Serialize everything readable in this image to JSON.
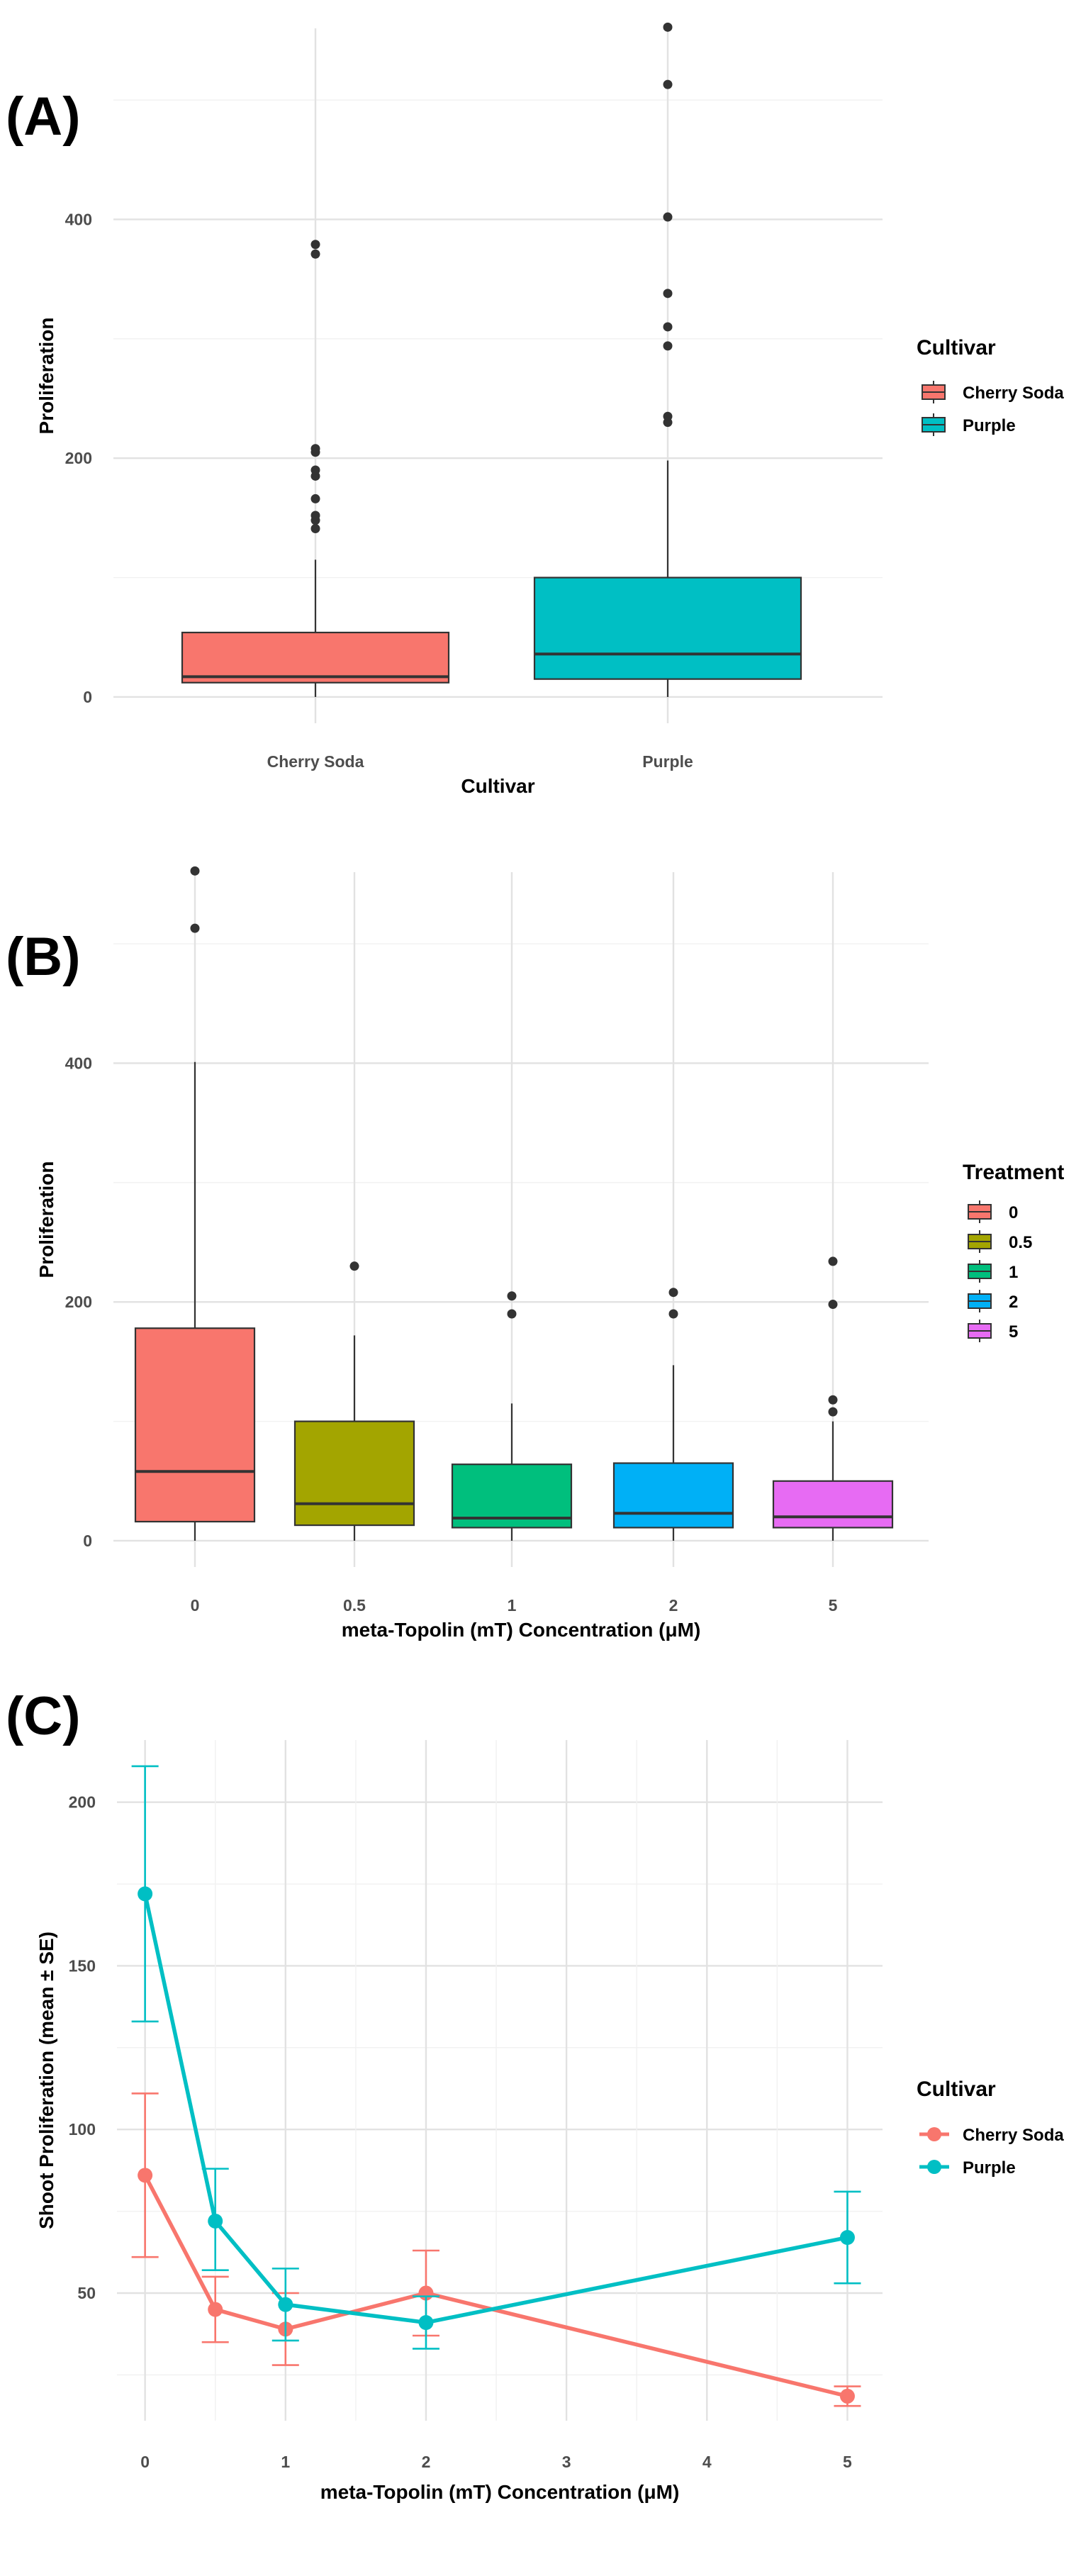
{
  "chart_data": [
    {
      "panel": "(A)",
      "type": "box",
      "xlabel": "Cultivar",
      "ylabel": "Proliferation",
      "categories": [
        "Cherry Soda",
        "Purple"
      ],
      "y_ticks": [
        0,
        200,
        400
      ],
      "ylim": [
        -22,
        560
      ],
      "legend": {
        "title": "Cultivar",
        "position": "right",
        "entries": [
          "Cherry Soda",
          "Purple"
        ]
      },
      "colors": [
        "#f8766d",
        "#00bfc4"
      ],
      "boxes": [
        {
          "category": "Cherry Soda",
          "q1": 12,
          "median": 17,
          "q3": 54,
          "whisker_low": 0,
          "whisker_high": 115,
          "outliers": [
            141,
            148,
            152,
            166,
            185,
            190,
            205,
            208,
            371,
            379
          ]
        },
        {
          "category": "Purple",
          "q1": 15,
          "median": 36,
          "q3": 100,
          "whisker_low": 0,
          "whisker_high": 198,
          "outliers": [
            230,
            235,
            294,
            310,
            338,
            402,
            513,
            561
          ]
        }
      ]
    },
    {
      "panel": "(B)",
      "type": "box",
      "xlabel": "meta-Topolin (mT) Concentration (μM)",
      "ylabel": "Proliferation",
      "categories": [
        "0",
        "0.5",
        "1",
        "2",
        "5"
      ],
      "y_ticks": [
        0,
        200,
        400
      ],
      "ylim": [
        -22,
        560
      ],
      "legend": {
        "title": "Treatment",
        "position": "right",
        "entries": [
          "0",
          "0.5",
          "1",
          "2",
          "5"
        ]
      },
      "colors": [
        "#f8766d",
        "#a3a500",
        "#00bf7d",
        "#00b0f6",
        "#e76bf3"
      ],
      "boxes": [
        {
          "category": "0",
          "q1": 16,
          "median": 58,
          "q3": 178,
          "whisker_low": 0,
          "whisker_high": 401,
          "outliers": [
            513,
            561
          ]
        },
        {
          "category": "0.5",
          "q1": 13,
          "median": 31,
          "q3": 100,
          "whisker_low": 0,
          "whisker_high": 172,
          "outliers": [
            230
          ]
        },
        {
          "category": "1",
          "q1": 11,
          "median": 19,
          "q3": 64,
          "whisker_low": 0,
          "whisker_high": 115,
          "outliers": [
            190,
            205
          ]
        },
        {
          "category": "2",
          "q1": 11,
          "median": 23,
          "q3": 65,
          "whisker_low": 0,
          "whisker_high": 147,
          "outliers": [
            190,
            208
          ]
        },
        {
          "category": "5",
          "q1": 11,
          "median": 20,
          "q3": 50,
          "whisker_low": 0,
          "whisker_high": 100,
          "outliers": [
            108,
            118,
            198,
            234
          ]
        }
      ]
    },
    {
      "panel": "(C)",
      "type": "line",
      "xlabel": "meta-Topolin (mT) Concentration (μM)",
      "ylabel": "Shoot Proliferation (mean ± SE)",
      "x_ticks": [
        0,
        1,
        2,
        3,
        4,
        5
      ],
      "y_ticks": [
        50,
        100,
        150,
        200
      ],
      "xlim": [
        -0.2,
        5.25
      ],
      "ylim": [
        11,
        219
      ],
      "legend": {
        "title": "Cultivar",
        "position": "right",
        "entries": [
          "Cherry Soda",
          "Purple"
        ]
      },
      "series": [
        {
          "name": "Cherry Soda",
          "color": "#f8766d",
          "points": [
            {
              "x": 0,
              "mean": 86,
              "lo": 61,
              "hi": 111
            },
            {
              "x": 0.5,
              "mean": 45,
              "lo": 35,
              "hi": 55
            },
            {
              "x": 1,
              "mean": 39,
              "lo": 28,
              "hi": 50
            },
            {
              "x": 2,
              "mean": 50,
              "lo": 37,
              "hi": 63
            },
            {
              "x": 5,
              "mean": 18.5,
              "lo": 15.5,
              "hi": 21.5
            }
          ]
        },
        {
          "name": "Purple",
          "color": "#00bfc4",
          "points": [
            {
              "x": 0,
              "mean": 172,
              "lo": 133,
              "hi": 211
            },
            {
              "x": 0.5,
              "mean": 72,
              "lo": 57,
              "hi": 88
            },
            {
              "x": 1,
              "mean": 46.5,
              "lo": 35.5,
              "hi": 57.5
            },
            {
              "x": 2,
              "mean": 41,
              "lo": 33,
              "hi": 49
            },
            {
              "x": 5,
              "mean": 67,
              "lo": 53,
              "hi": 81
            }
          ]
        }
      ]
    }
  ]
}
